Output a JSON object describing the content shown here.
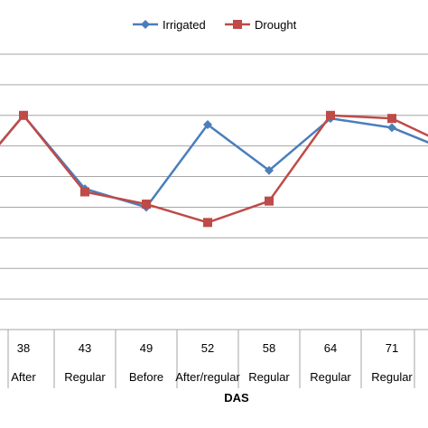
{
  "chart_data": {
    "type": "line",
    "categories": [
      "",
      "38",
      "43",
      "49",
      "52",
      "58",
      "64",
      "71",
      ""
    ],
    "category_sublabels": [
      "",
      "After",
      "Regular",
      "Before",
      "After/regular",
      "Regular",
      "Regular",
      "Regular",
      ""
    ],
    "xlabel": "DAS",
    "ylabel": "",
    "title": "",
    "ylim": [
      0,
      9
    ],
    "grid": true,
    "legend_position": "top-center",
    "series": [
      {
        "name": "Irrigated",
        "color": "#4a7ebb",
        "marker": "diamond",
        "values": [
          5.8,
          7.0,
          4.6,
          4.0,
          6.7,
          5.2,
          6.9,
          6.6,
          6.0
        ]
      },
      {
        "name": "Drought",
        "color": "#be4b48",
        "marker": "square",
        "values": [
          5.8,
          7.0,
          4.5,
          4.1,
          3.5,
          4.2,
          7.0,
          6.9,
          6.2
        ]
      }
    ]
  }
}
